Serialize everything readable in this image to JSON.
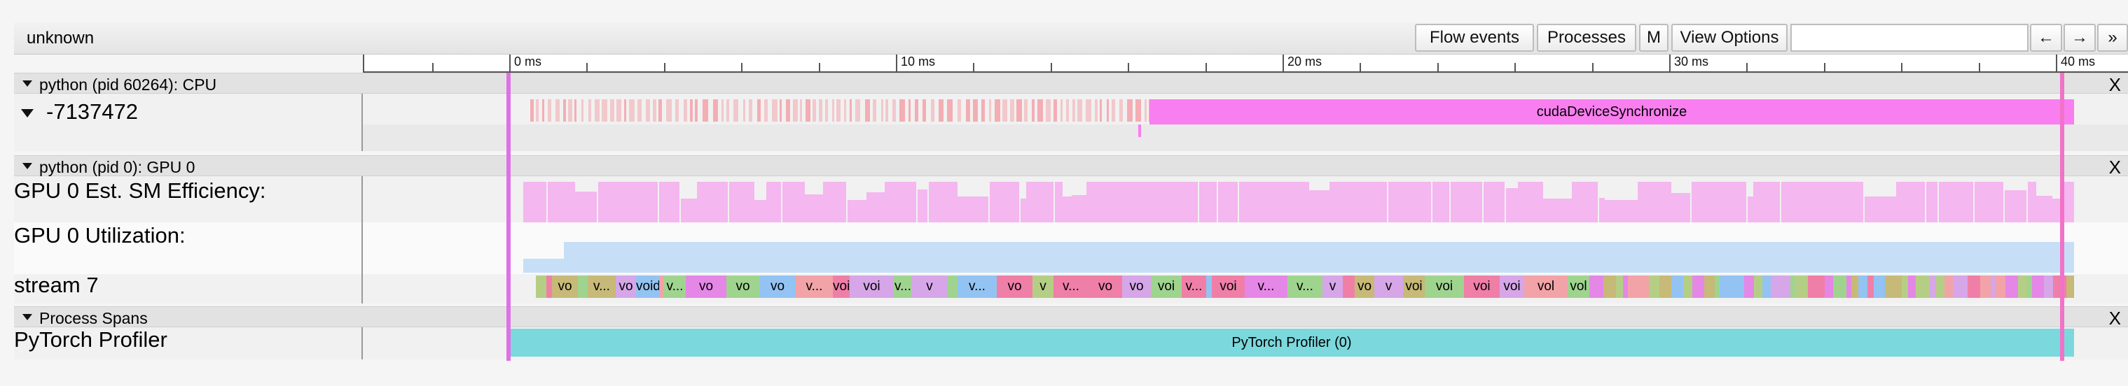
{
  "toolbar": {
    "title": "unknown",
    "buttons": [
      {
        "label": "Flow events"
      },
      {
        "label": "Processes"
      },
      {
        "label": "M"
      },
      {
        "label": "View Options"
      }
    ],
    "search_value": "",
    "nav": [
      {
        "label": "←"
      },
      {
        "label": "→"
      },
      {
        "label": "»"
      }
    ]
  },
  "ruler": {
    "labels": [
      "0 ms",
      "10 ms",
      "20 ms",
      "30 ms",
      "40 ms"
    ]
  },
  "processes": [
    {
      "header": "python (pid 60264): CPU",
      "close": "X",
      "tracks": [
        {
          "label": "-7137472",
          "slice_label": "cudaDeviceSynchronize"
        }
      ]
    },
    {
      "header": "python (pid 0): GPU 0",
      "close": "X",
      "tracks": [
        {
          "label": "GPU 0 Est. SM Efficiency:"
        },
        {
          "label": "GPU 0 Utilization:"
        },
        {
          "label": "stream 7"
        }
      ]
    },
    {
      "header": "Process Spans",
      "close": "X",
      "tracks": [
        {
          "label": "PyTorch Profiler",
          "slice_label": "PyTorch Profiler (0)"
        }
      ]
    }
  ],
  "stream_labels": [
    "vo",
    "v...",
    "vo",
    "void a...",
    "v...",
    "vo",
    "vo",
    "vo",
    "v...",
    "voi...",
    "voi",
    "v...",
    "v",
    "v...",
    "vo",
    "v",
    "v...",
    "vo",
    "vo",
    "voi",
    "v...",
    "voi",
    "v...",
    "v...",
    "v",
    "vo",
    "v",
    "voi",
    "voi",
    "voi",
    "voi",
    "vol",
    "vol"
  ],
  "colors": {
    "cpu_slice": "#f97ef0",
    "cpu_small_slice": "#f3aeb4",
    "sm_efficiency": "#f4b7ef",
    "utilization": "#c6dff7",
    "profiler": "#7bd8dc",
    "range_marker": "#f172e8"
  }
}
